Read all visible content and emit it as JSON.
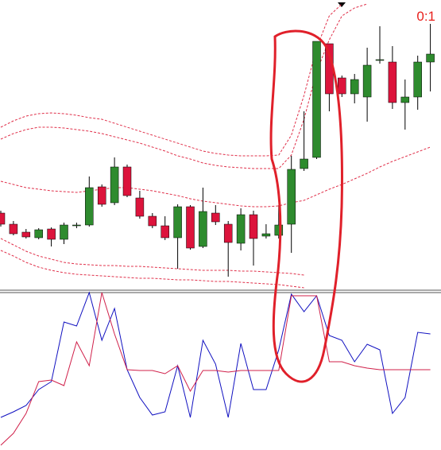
{
  "chart_data": [
    {
      "type": "candlestick",
      "annotation": "0:1",
      "ylim": [
        0,
        365
      ],
      "up_color": "#2e8b2e",
      "down_color": "#dc143c",
      "open": [
        97,
        83,
        73,
        66,
        77,
        64,
        81,
        82,
        130,
        110,
        155,
        116,
        93,
        81,
        66,
        105,
        55,
        97,
        83,
        59,
        95,
        68,
        69,
        83,
        153,
        167,
        310,
        267,
        247,
        243,
        289,
        287,
        236,
        243,
        287
      ],
      "high": [
        100,
        87,
        77,
        78,
        79,
        85,
        85,
        143,
        133,
        167,
        158,
        125,
        97,
        93,
        108,
        107,
        129,
        107,
        87,
        103,
        100,
        83,
        107,
        169,
        225,
        313,
        310,
        270,
        272,
        305,
        332,
        307,
        265,
        295,
        335
      ],
      "low": [
        80,
        69,
        65,
        64,
        55,
        58,
        78,
        80,
        105,
        107,
        117,
        90,
        78,
        63,
        27,
        51,
        53,
        82,
        17,
        50,
        31,
        65,
        65,
        47,
        150,
        165,
        225,
        243,
        235,
        212,
        285,
        228,
        202,
        227,
        250
      ],
      "close": [
        83,
        71,
        67,
        76,
        64,
        82,
        82,
        129,
        108,
        155,
        119,
        93,
        81,
        66,
        105,
        53,
        99,
        86,
        60,
        95,
        65,
        71,
        82,
        152,
        165,
        313,
        247,
        247,
        265,
        283,
        290,
        236,
        243,
        287,
        297
      ],
      "series": [
        {
          "color": "#e0304a",
          "values": [
            205,
            213,
            219,
            222,
            223,
            222,
            220,
            217,
            215,
            210,
            205,
            200,
            195,
            190,
            185,
            180,
            175,
            172,
            170,
            169,
            169,
            169,
            170,
            195,
            245,
            305,
            345,
            360,
            null,
            null,
            null,
            null,
            null,
            null,
            null
          ]
        },
        {
          "color": "#e0304a",
          "values": [
            190,
            197,
            202,
            205,
            205,
            204,
            202,
            200,
            197,
            193,
            189,
            185,
            180,
            175,
            169,
            165,
            160,
            157,
            155,
            154,
            153,
            153,
            153,
            170,
            215,
            275,
            315,
            345,
            355,
            360,
            null,
            null,
            null,
            null,
            null
          ]
        },
        {
          "color": "#e0304a",
          "values": [
            137,
            133,
            129,
            127,
            125,
            124,
            123,
            125,
            127,
            129,
            129,
            127,
            125,
            122,
            119,
            115,
            112,
            110,
            108,
            106,
            105,
            105,
            106,
            110,
            113,
            120,
            127,
            133,
            140,
            147,
            155,
            162,
            168,
            174,
            180
          ]
        },
        {
          "color": "#e0304a",
          "values": [
            65,
            57,
            49,
            43,
            39,
            35,
            33,
            32,
            31,
            31,
            30,
            30,
            29,
            28,
            27,
            26,
            25,
            25,
            25,
            24,
            24,
            23,
            22,
            21,
            19,
            null,
            null,
            null,
            null,
            null,
            null,
            null,
            null,
            null,
            null
          ]
        },
        {
          "color": "#e0304a",
          "values": [
            50,
            43,
            35,
            29,
            25,
            22,
            20,
            19,
            18,
            17,
            16,
            15,
            15,
            14,
            13,
            13,
            12,
            11,
            11,
            10,
            9,
            8,
            7,
            5,
            3,
            null,
            null,
            null,
            null,
            null,
            null,
            null,
            null,
            null,
            null
          ]
        }
      ]
    },
    {
      "type": "line",
      "ylim": [
        0,
        198
      ],
      "series": [
        {
          "color": "#1010c0",
          "values": [
            41,
            48,
            56,
            76,
            86,
            161,
            156,
            198,
            138,
            178,
            101,
            66,
            44,
            48,
            106,
            41,
            138,
            108,
            41,
            134,
            76,
            76,
            126,
            196,
            174,
            194,
            144,
            138,
            111,
            133,
            126,
            46,
            66,
            148,
            146
          ]
        },
        {
          "color": "#d0204a",
          "values": [
            6,
            21,
            46,
            86,
            88,
            81,
            136,
            106,
            198,
            146,
            101,
            100,
            100,
            96,
            106,
            74,
            100,
            100,
            98,
            100,
            100,
            100,
            100,
            194,
            194,
            194,
            111,
            111,
            106,
            103,
            101,
            101,
            101,
            101,
            101
          ]
        }
      ]
    }
  ]
}
